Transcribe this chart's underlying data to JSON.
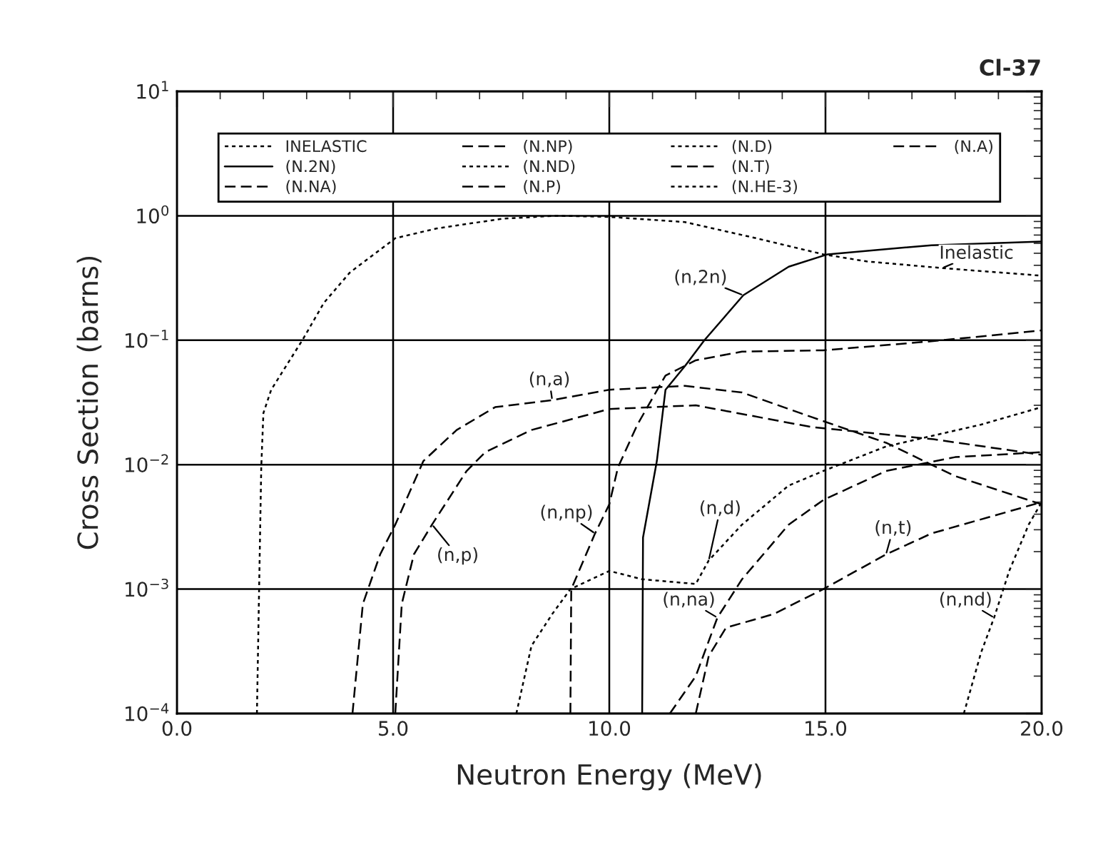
{
  "chart_data": {
    "type": "line",
    "title": "Cl-37",
    "xlabel": "Neutron Energy (MeV)",
    "ylabel": "Cross Section (barns)",
    "log": "y",
    "xlim": [
      0,
      20
    ],
    "ylim": [
      0.0001,
      10
    ],
    "xticks": [
      {
        "value": 0,
        "label": "0.0"
      },
      {
        "value": 5,
        "label": "5.0"
      },
      {
        "value": 10,
        "label": "10.0"
      },
      {
        "value": 15,
        "label": "15.0"
      },
      {
        "value": 20,
        "label": "20.0"
      }
    ],
    "yticks": [
      {
        "value": 0.0001,
        "label": "10$^{−4}$"
      },
      {
        "value": 0.001,
        "label": "10$^{−3}$"
      },
      {
        "value": 0.01,
        "label": "10$^{−2}$"
      },
      {
        "value": 0.1,
        "label": "10$^{−1}$"
      },
      {
        "value": 1,
        "label": "10$^{0}$"
      },
      {
        "value": 10,
        "label": "10$^{1}$"
      }
    ],
    "grid": true,
    "legend": "top",
    "series": [
      {
        "name": "INELASTIC",
        "color": "#000000",
        "line_style": "dotted",
        "x": [
          1.85,
          1.95,
          2.0,
          2.18,
          2.9,
          3.4,
          4.0,
          5.05,
          6.0,
          7.55,
          8.8,
          10.0,
          11.75,
          13.4,
          14.95,
          15.95,
          17.7,
          20.0
        ],
        "values": [
          0.0001,
          0.0095,
          0.026,
          0.04,
          0.1,
          0.2,
          0.35,
          0.66,
          0.79,
          0.95,
          1.0,
          0.98,
          0.89,
          0.66,
          0.49,
          0.43,
          0.38,
          0.33
        ]
      },
      {
        "name": "(N.2N)",
        "color": "#000000",
        "line_style": "solid",
        "x": [
          10.76,
          10.78,
          11.1,
          11.3,
          11.75,
          12.2,
          13.1,
          14.15,
          15.05,
          17.45,
          20.0
        ],
        "values": [
          0.0001,
          0.0026,
          0.0107,
          0.04,
          0.062,
          0.1,
          0.23,
          0.39,
          0.49,
          0.58,
          0.62
        ]
      },
      {
        "name": "(N.NA)",
        "color": "#000000",
        "line_style": "dashed",
        "x": [
          11.4,
          12.0,
          12.5,
          13.07,
          14.15,
          14.95,
          16.4,
          18.0,
          20.0
        ],
        "values": [
          0.0001,
          0.0002,
          0.00059,
          0.0012,
          0.0033,
          0.0052,
          0.0089,
          0.0115,
          0.0126
        ]
      },
      {
        "name": "(N.NP)",
        "color": "#000000",
        "line_style": "dashed",
        "x": [
          9.1,
          9.12,
          9.67,
          10.0,
          10.2,
          10.65,
          11.3,
          12.0,
          13.07,
          14.95,
          17.45,
          20.0
        ],
        "values": [
          0.0001,
          0.001,
          0.0028,
          0.0048,
          0.0095,
          0.021,
          0.052,
          0.069,
          0.081,
          0.083,
          0.098,
          0.12
        ]
      },
      {
        "name": "(N.ND)",
        "color": "#000000",
        "line_style": "dotted",
        "x": [
          18.2,
          18.6,
          18.9,
          19.25,
          19.7,
          20.0
        ],
        "values": [
          0.0001,
          0.00031,
          0.00059,
          0.0014,
          0.0033,
          0.005
        ]
      },
      {
        "name": "(N.P)",
        "color": "#000000",
        "line_style": "dashed",
        "x": [
          5.05,
          5.2,
          5.48,
          5.9,
          6.7,
          7.13,
          8.2,
          10.0,
          12.0,
          14.7,
          17.5,
          20.0
        ],
        "values": [
          0.0001,
          0.00076,
          0.0019,
          0.0033,
          0.0089,
          0.0126,
          0.019,
          0.028,
          0.03,
          0.02,
          0.016,
          0.012
        ]
      },
      {
        "name": "(N.D)",
        "color": "#000000",
        "line_style": "dotted",
        "x": [
          7.85,
          8.2,
          8.68,
          9.1,
          10.0,
          10.76,
          12.0,
          12.3,
          13.07,
          14.15,
          14.95,
          16.4,
          18.6,
          20.0
        ],
        "values": [
          0.0001,
          0.00035,
          0.00063,
          0.001,
          0.0014,
          0.0012,
          0.0011,
          0.0017,
          0.0033,
          0.0068,
          0.0089,
          0.014,
          0.021,
          0.029
        ]
      },
      {
        "name": "(N.T)",
        "color": "#000000",
        "line_style": "dashed",
        "x": [
          12.0,
          12.3,
          12.7,
          13.8,
          14.95,
          16.4,
          17.45,
          20.0
        ],
        "values": [
          0.0001,
          0.00029,
          0.00049,
          0.00063,
          0.001,
          0.0019,
          0.0028,
          0.005
        ]
      },
      {
        "name": "(N.HE-3)",
        "color": "#000000",
        "line_style": "dotted"
      },
      {
        "name": "(N.A)",
        "color": "#000000",
        "line_style": "dashed",
        "x": [
          4.06,
          4.3,
          4.7,
          5.05,
          5.7,
          6.47,
          7.36,
          8.68,
          10.0,
          11.75,
          13.07,
          14.7,
          16.4,
          18.0,
          20.0
        ],
        "values": [
          0.0001,
          0.00076,
          0.0019,
          0.0033,
          0.0107,
          0.019,
          0.029,
          0.033,
          0.04,
          0.043,
          0.038,
          0.024,
          0.015,
          0.0081,
          0.0048
        ]
      }
    ],
    "annotations": [
      {
        "text": "Inelastic",
        "x": 17.7,
        "y": 0.38
      },
      {
        "text": "(n,2n)",
        "x": 13.1,
        "y": 0.23
      },
      {
        "text": "(n,a)",
        "x": 8.68,
        "y": 0.033
      },
      {
        "text": "(n,p)",
        "x": 5.9,
        "y": 0.0033
      },
      {
        "text": "(n,np)",
        "x": 9.67,
        "y": 0.0028
      },
      {
        "text": "(n,d)",
        "x": 12.3,
        "y": 0.0017
      },
      {
        "text": "(n,t)",
        "x": 16.4,
        "y": 0.0019
      },
      {
        "text": "(n,na)",
        "x": 12.5,
        "y": 0.00059
      },
      {
        "text": "(n,nd)",
        "x": 18.9,
        "y": 0.00059
      }
    ]
  }
}
